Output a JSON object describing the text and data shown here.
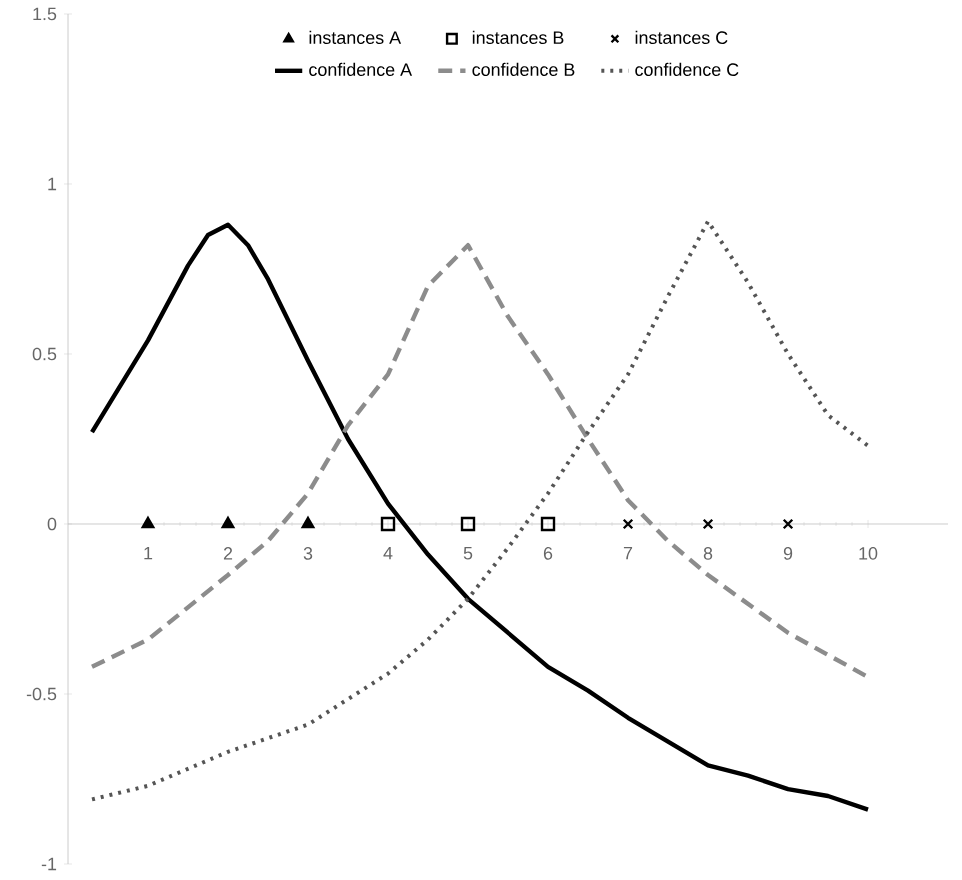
{
  "chart_data": {
    "type": "line",
    "xlim": [
      0,
      11
    ],
    "xticks": [
      1,
      2,
      3,
      4,
      5,
      6,
      7,
      8,
      9,
      10
    ],
    "ylim": [
      -1,
      1.5
    ],
    "yticks": [
      -1,
      -0.5,
      0,
      0.5,
      1,
      1.5
    ],
    "legend": "top",
    "series": [
      {
        "name": "instances A",
        "type": "scatter",
        "marker": "triangle",
        "color": "#000000",
        "x": [
          1,
          2,
          3
        ],
        "values": [
          0,
          0,
          0
        ]
      },
      {
        "name": "instances B",
        "type": "scatter",
        "marker": "square",
        "color": "#000000",
        "x": [
          4,
          5,
          6
        ],
        "values": [
          0,
          0,
          0
        ]
      },
      {
        "name": "instances C",
        "type": "scatter",
        "marker": "cross",
        "color": "#000000",
        "x": [
          7,
          8,
          9
        ],
        "values": [
          0,
          0,
          0
        ]
      },
      {
        "name": "confidence A",
        "line_style": "solid",
        "color": "#000000",
        "x": [
          0.3,
          1,
          1.5,
          1.75,
          2,
          2.25,
          2.5,
          3,
          3.5,
          4,
          4.5,
          5,
          5.5,
          6,
          6.5,
          7,
          7.5,
          8,
          8.5,
          9,
          9.5,
          10
        ],
        "values": [
          0.27,
          0.54,
          0.76,
          0.85,
          0.88,
          0.82,
          0.72,
          0.48,
          0.25,
          0.06,
          -0.09,
          -0.22,
          -0.32,
          -0.42,
          -0.49,
          -0.57,
          -0.64,
          -0.71,
          -0.74,
          -0.78,
          -0.8,
          -0.84
        ]
      },
      {
        "name": "confidence B",
        "line_style": "dashed",
        "color": "#8c8c8c",
        "x": [
          0.3,
          1,
          2,
          2.5,
          3,
          3.5,
          4,
          4.5,
          5,
          5.5,
          6,
          6.5,
          7,
          7.5,
          8,
          9,
          10
        ],
        "values": [
          -0.42,
          -0.34,
          -0.15,
          -0.05,
          0.09,
          0.29,
          0.44,
          0.7,
          0.82,
          0.61,
          0.44,
          0.25,
          0.07,
          -0.05,
          -0.15,
          -0.32,
          -0.45
        ]
      },
      {
        "name": "confidence C",
        "line_style": "dotted",
        "color": "#555555",
        "x": [
          0.3,
          1,
          2,
          3,
          4,
          4.5,
          5,
          5.5,
          6,
          6.5,
          7,
          7.5,
          8,
          8.5,
          9,
          9.5,
          10
        ],
        "values": [
          -0.81,
          -0.77,
          -0.67,
          -0.59,
          -0.44,
          -0.34,
          -0.22,
          -0.07,
          0.09,
          0.27,
          0.44,
          0.67,
          0.89,
          0.71,
          0.5,
          0.32,
          0.23
        ]
      }
    ]
  }
}
